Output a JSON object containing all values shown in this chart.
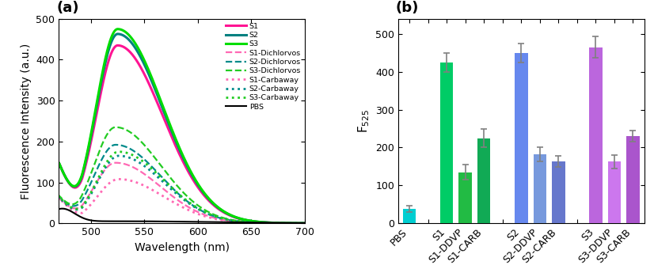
{
  "panel_a": {
    "xlabel": "Wavelength (nm)",
    "ylabel": "Fluorescence Intensity (a.u.)",
    "xlim": [
      470,
      700
    ],
    "ylim": [
      0,
      500
    ],
    "yticks": [
      0,
      100,
      200,
      300,
      400,
      500
    ],
    "xticks": [
      500,
      550,
      600,
      650,
      700
    ],
    "title": "(a)",
    "curves_info": {
      "S1": {
        "color": "#FF1493",
        "ls": "-",
        "lw": 2.2,
        "peak_x": 525,
        "peak": 435,
        "base": 148,
        "sl": 20,
        "sr": 42
      },
      "S2": {
        "color": "#008080",
        "ls": "-",
        "lw": 2.2,
        "peak_x": 525,
        "peak": 463,
        "base": 148,
        "sl": 20,
        "sr": 42
      },
      "S3": {
        "color": "#00DD00",
        "ls": "-",
        "lw": 2.2,
        "peak_x": 525,
        "peak": 475,
        "base": 148,
        "sl": 20,
        "sr": 42
      },
      "S1-Dichlorvos": {
        "color": "#FF69B4",
        "ls": "--",
        "lw": 1.6,
        "peak_x": 523,
        "peak": 148,
        "base": 62,
        "sl": 20,
        "sr": 42
      },
      "S2-Dichlorvos": {
        "color": "#008B8B",
        "ls": "--",
        "lw": 1.6,
        "peak_x": 523,
        "peak": 192,
        "base": 66,
        "sl": 20,
        "sr": 42
      },
      "S3-Dichlorvos": {
        "color": "#22CC22",
        "ls": "--",
        "lw": 1.6,
        "peak_x": 523,
        "peak": 235,
        "base": 68,
        "sl": 20,
        "sr": 42
      },
      "S1-Carbaway": {
        "color": "#FF69B4",
        "ls": ":",
        "lw": 2.0,
        "peak_x": 526,
        "peak": 108,
        "base": 62,
        "sl": 20,
        "sr": 42
      },
      "S2-Carbaway": {
        "color": "#008B8B",
        "ls": ":",
        "lw": 2.0,
        "peak_x": 526,
        "peak": 165,
        "base": 64,
        "sl": 20,
        "sr": 42
      },
      "S3-Carbaway": {
        "color": "#22CC22",
        "ls": ":",
        "lw": 2.0,
        "peak_x": 526,
        "peak": 175,
        "base": 66,
        "sl": 20,
        "sr": 42
      },
      "PBS": {
        "color": "#000000",
        "ls": "-",
        "lw": 1.5,
        "peak_x": 473,
        "peak": 32,
        "base": 0,
        "sl": 12,
        "sr": 80
      }
    },
    "legend_order": [
      "S1",
      "S2",
      "S3",
      "S1-Dichlorvos",
      "S2-Dichlorvos",
      "S3-Dichlorvos",
      "S1-Carbaway",
      "S2-Carbaway",
      "S3-Carbaway",
      "PBS"
    ]
  },
  "panel_b": {
    "ylabel": "F$_{525}$",
    "ylim": [
      0,
      540
    ],
    "yticks": [
      0,
      100,
      200,
      300,
      400,
      500
    ],
    "title": "(b)",
    "categories": [
      "PBS",
      "-",
      "S1",
      "S1-DDVP",
      "S1-CARB",
      "-",
      "S2",
      "S2-DDVP",
      "S2-CARB",
      "-",
      "S3",
      "S3-DDVP",
      "S3-CARB"
    ],
    "values": [
      38,
      0,
      425,
      135,
      225,
      0,
      450,
      182,
      164,
      0,
      465,
      163,
      230
    ],
    "errors": [
      8,
      0,
      25,
      20,
      25,
      0,
      25,
      18,
      15,
      0,
      28,
      18,
      15
    ],
    "colors": [
      "#00CED1",
      "#FFFFFF",
      "#00CC66",
      "#22BB44",
      "#11AA55",
      "#FFFFFF",
      "#6688EE",
      "#7799DD",
      "#6677CC",
      "#FFFFFF",
      "#BB66DD",
      "#CC77EE",
      "#AA55CC"
    ],
    "bar_width": 0.7
  }
}
